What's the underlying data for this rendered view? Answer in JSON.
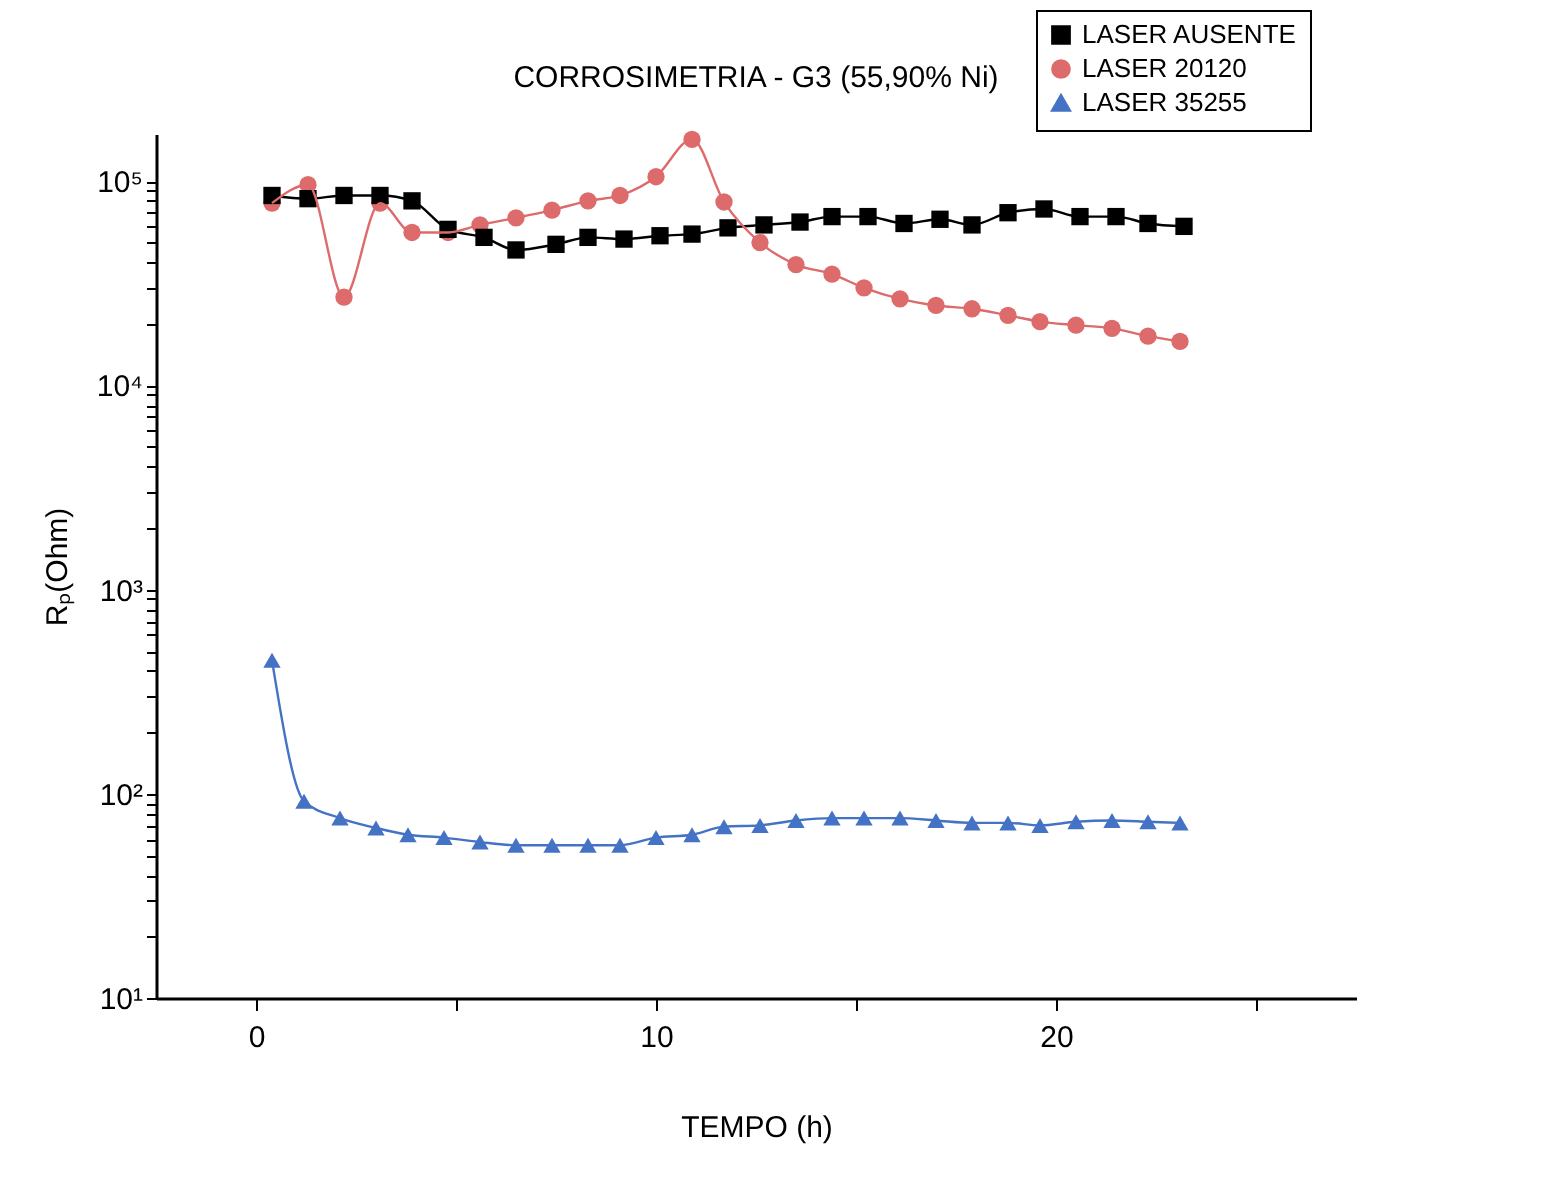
{
  "chart_data": {
    "type": "line",
    "title": "CORROSIMETRIA - G3 (55,90% Ni)",
    "xlabel": "TEMPO (h)",
    "ylabel": "Rₚ(Ohm)",
    "log": "y",
    "grid": false,
    "legend": "top right",
    "line_style": "solid",
    "xlim": [
      -2.5,
      27.5
    ],
    "xticks": [
      0,
      {
        "value": 5,
        "label": null
      },
      10,
      {
        "value": 15,
        "label": null
      },
      20,
      {
        "value": 25,
        "label": null
      }
    ],
    "ylim": [
      10,
      170000
    ],
    "yticks": [
      {
        "value": 10,
        "label": "10¹"
      },
      {
        "value": 100,
        "label": "10²"
      },
      {
        "value": 1000,
        "label": "10³"
      },
      {
        "value": 10000,
        "label": "10⁴"
      },
      {
        "value": 100000,
        "label": "10⁵"
      },
      {
        "value": 20,
        "label": null
      },
      {
        "value": 30,
        "label": null
      },
      {
        "value": 40,
        "label": null
      },
      {
        "value": 50,
        "label": null
      },
      {
        "value": 60,
        "label": null
      },
      {
        "value": 70,
        "label": null
      },
      {
        "value": 80,
        "label": null
      },
      {
        "value": 90,
        "label": null
      },
      {
        "value": 200,
        "label": null
      },
      {
        "value": 300,
        "label": null
      },
      {
        "value": 400,
        "label": null
      },
      {
        "value": 500,
        "label": null
      },
      {
        "value": 600,
        "label": null
      },
      {
        "value": 700,
        "label": null
      },
      {
        "value": 800,
        "label": null
      },
      {
        "value": 900,
        "label": null
      },
      {
        "value": 2000,
        "label": null
      },
      {
        "value": 3000,
        "label": null
      },
      {
        "value": 4000,
        "label": null
      },
      {
        "value": 5000,
        "label": null
      },
      {
        "value": 6000,
        "label": null
      },
      {
        "value": 7000,
        "label": null
      },
      {
        "value": 8000,
        "label": null
      },
      {
        "value": 9000,
        "label": null
      },
      {
        "value": 20000,
        "label": null
      },
      {
        "value": 30000,
        "label": null
      },
      {
        "value": 40000,
        "label": null
      },
      {
        "value": 50000,
        "label": null
      },
      {
        "value": 60000,
        "label": null
      },
      {
        "value": 70000,
        "label": null
      },
      {
        "value": 80000,
        "label": null
      },
      {
        "value": 90000,
        "label": null
      }
    ],
    "series": [
      {
        "name": "LASER AUSENTE",
        "color": "#000000",
        "marker": "square",
        "x": [
          0.4,
          1.3,
          2.2,
          3.1,
          3.9,
          4.8,
          5.7,
          6.5,
          7.5,
          8.3,
          9.2,
          10.1,
          10.9,
          11.8,
          12.7,
          13.6,
          14.4,
          15.3,
          16.2,
          17.1,
          17.9,
          18.8,
          19.7,
          20.6,
          21.5,
          22.3,
          23.2
        ],
        "values": [
          85000,
          82000,
          85000,
          85000,
          80000,
          58000,
          53000,
          46000,
          49000,
          53000,
          52000,
          54000,
          55000,
          59000,
          61000,
          63000,
          67000,
          67000,
          62000,
          65000,
          61000,
          70000,
          73000,
          67000,
          67000,
          62000,
          60000
        ]
      },
      {
        "name": "LASER 20120",
        "color": "#dd6b6b",
        "marker": "circle",
        "x": [
          0.4,
          1.3,
          2.2,
          3.1,
          3.9,
          4.8,
          5.6,
          6.5,
          7.4,
          8.3,
          9.1,
          10.0,
          10.9,
          11.7,
          12.6,
          13.5,
          14.4,
          15.2,
          16.1,
          17.0,
          17.9,
          18.8,
          19.6,
          20.5,
          21.4,
          22.3,
          23.1
        ],
        "values": [
          78000,
          96000,
          27000,
          78000,
          56000,
          56000,
          61000,
          66000,
          72000,
          80000,
          85000,
          105000,
          160000,
          79000,
          50000,
          39000,
          35000,
          30000,
          26500,
          24600,
          23700,
          22000,
          20500,
          19700,
          19000,
          17400,
          16400
        ]
      },
      {
        "name": "LASER 35255",
        "color": "#4472c4",
        "marker": "triangle",
        "x": [
          0.4,
          1.2,
          2.1,
          3.0,
          3.8,
          4.7,
          5.6,
          6.5,
          7.4,
          8.3,
          9.1,
          10.0,
          10.9,
          11.7,
          12.6,
          13.5,
          14.4,
          15.2,
          16.1,
          17.0,
          17.9,
          18.8,
          19.6,
          20.5,
          21.4,
          22.3,
          23.1
        ],
        "values": [
          450,
          92,
          76,
          68,
          63,
          61,
          58,
          56,
          56,
          56,
          56,
          61,
          63,
          69,
          70,
          74,
          76,
          76,
          76,
          74,
          72,
          72,
          70,
          73,
          74,
          73,
          72
        ]
      }
    ]
  }
}
